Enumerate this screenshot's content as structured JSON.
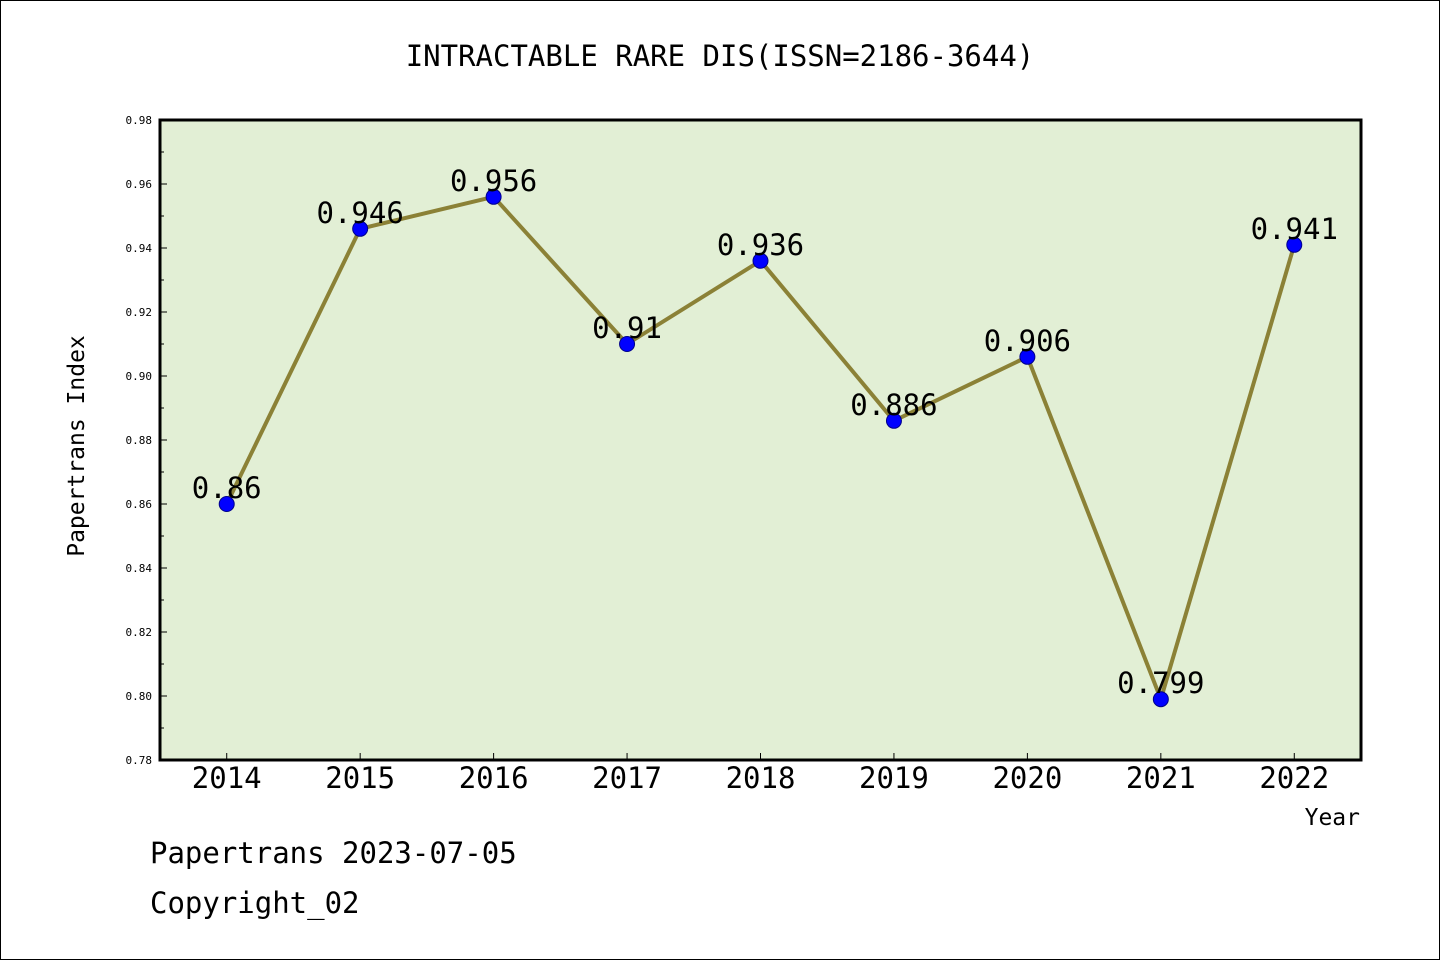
{
  "chart_data": {
    "type": "line",
    "title": "INTRACTABLE RARE DIS(ISSN=2186-3644)",
    "xlabel": "Year",
    "ylabel": "Papertrans Index",
    "categories": [
      "2014",
      "2015",
      "2016",
      "2017",
      "2018",
      "2019",
      "2020",
      "2021",
      "2022"
    ],
    "series": [
      {
        "values": [
          0.86,
          0.946,
          0.956,
          0.91,
          0.936,
          0.886,
          0.906,
          0.799,
          0.941
        ]
      }
    ],
    "data_labels": [
      "0.86",
      "0.946",
      "0.956",
      "0.91",
      "0.936",
      "0.886",
      "0.906",
      "0.799",
      "0.941"
    ],
    "ylim": [
      0.78,
      0.98
    ],
    "yticks": [
      "0.78",
      "0.80",
      "0.82",
      "0.84",
      "0.86",
      "0.88",
      "0.90",
      "0.92",
      "0.94",
      "0.96",
      "0.98"
    ],
    "grid": false,
    "colors": {
      "plot_background": "#e2efd5",
      "line": "#8b8136",
      "marker": "#0000ff"
    }
  },
  "footer": {
    "line1": "Papertrans 2023-07-05",
    "line2": "Copyright_02"
  }
}
